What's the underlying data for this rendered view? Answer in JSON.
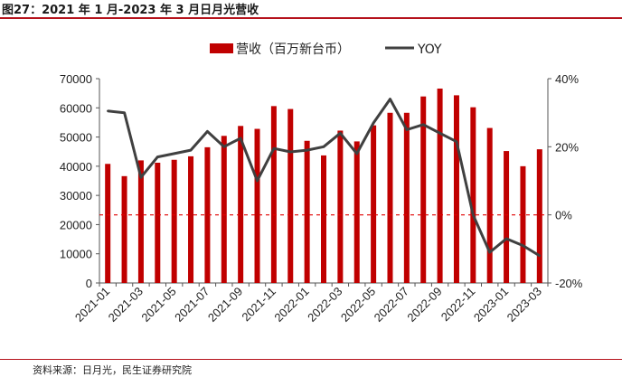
{
  "figure": {
    "title": "图27：2021 年 1 月-2023 年 3 月日月光营收",
    "source": "资料来源：日月光，民生证券研究院"
  },
  "colors": {
    "bar": "#c00000",
    "line": "#404040",
    "zero_line": "#e00000",
    "rule": "#b5121b"
  },
  "chart_data": {
    "type": "bar+line",
    "categories": [
      "2021-01",
      "2021-02",
      "2021-03",
      "2021-04",
      "2021-05",
      "2021-06",
      "2021-07",
      "2021-08",
      "2021-09",
      "2021-10",
      "2021-11",
      "2021-12",
      "2022-01",
      "2022-02",
      "2022-03",
      "2022-04",
      "2022-05",
      "2022-06",
      "2022-07",
      "2022-08",
      "2022-09",
      "2022-10",
      "2022-11",
      "2022-12",
      "2023-01",
      "2023-02",
      "2023-03"
    ],
    "tick_labels": [
      "2021-01",
      "2021-03",
      "2021-05",
      "2021-07",
      "2021-09",
      "2021-11",
      "2022-01",
      "2022-03",
      "2022-05",
      "2022-07",
      "2022-09",
      "2022-11",
      "2023-01",
      "2023-03"
    ],
    "series": [
      {
        "name": "营收（百万新台币）",
        "type": "bar",
        "axis": "left",
        "values": [
          40800,
          36600,
          42000,
          41200,
          42200,
          43400,
          46500,
          50400,
          53800,
          52800,
          60600,
          59600,
          48700,
          43700,
          52200,
          48500,
          54000,
          58300,
          58300,
          63900,
          66600,
          64300,
          60200,
          53100,
          45200,
          40000,
          45800
        ]
      },
      {
        "name": "YOY",
        "type": "line",
        "axis": "right",
        "unit": "%",
        "values": [
          30.5,
          30.0,
          11.0,
          17.0,
          18.0,
          19.0,
          24.5,
          20.0,
          22.5,
          10.0,
          19.5,
          18.5,
          19.0,
          20.0,
          24.0,
          18.0,
          27.0,
          34.0,
          25.0,
          26.5,
          24.0,
          21.5,
          0.0,
          -11.0,
          -7.0,
          -9.0,
          -12.0
        ]
      }
    ],
    "y_left": {
      "min": 0,
      "max": 70000,
      "ticks": [
        0,
        10000,
        20000,
        30000,
        40000,
        50000,
        60000,
        70000
      ]
    },
    "y_right": {
      "min": -20,
      "max": 40,
      "ticks": [
        -20,
        0,
        20,
        40
      ],
      "tick_labels": [
        "-20%",
        "0%",
        "20%",
        "40%"
      ]
    },
    "reference_line": {
      "axis": "right",
      "value": 0,
      "style": "dashed"
    },
    "legend": {
      "position": "top-center",
      "entries": [
        "营收（百万新台币）",
        "YOY"
      ]
    }
  }
}
